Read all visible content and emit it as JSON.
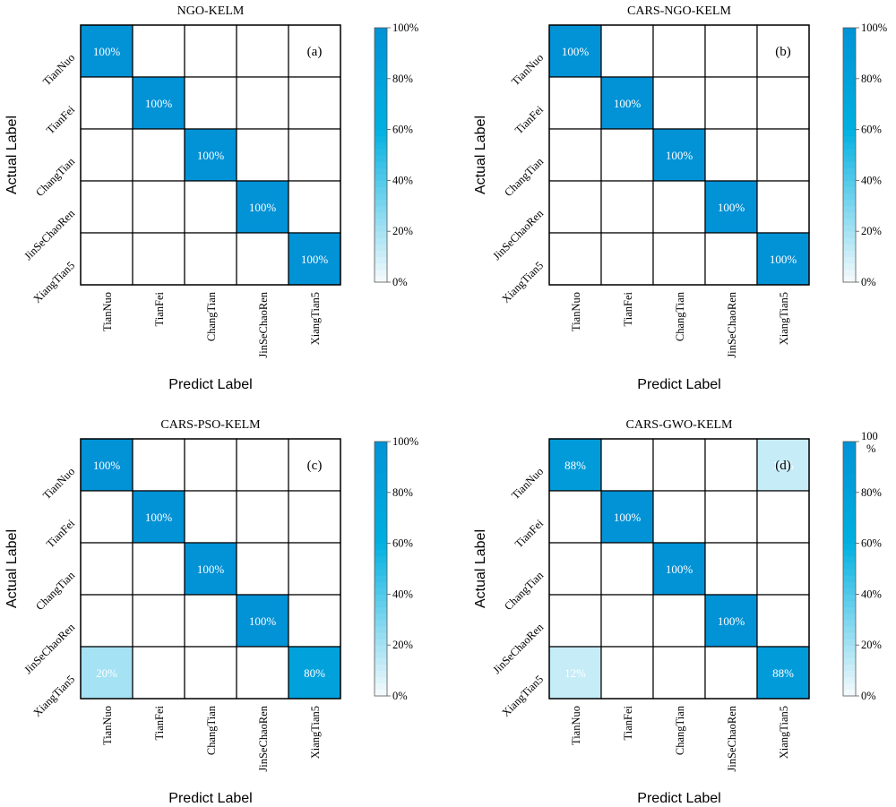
{
  "chart_data": [
    {
      "type": "heatmap",
      "title": "NGO-KELM",
      "panel_label": "(a)",
      "xlabel": "Predict Label",
      "ylabel": "Actual Label",
      "x_categories": [
        "TianNuo",
        "TianFei",
        "ChangTian",
        "JinSeChaoRen",
        "XiangTian5"
      ],
      "y_categories": [
        "TianNuo",
        "TianFei",
        "ChangTian",
        "JinSeChaoRen",
        "XiangTian5"
      ],
      "values": [
        [
          100,
          0,
          0,
          0,
          0
        ],
        [
          0,
          100,
          0,
          0,
          0
        ],
        [
          0,
          0,
          100,
          0,
          0
        ],
        [
          0,
          0,
          0,
          100,
          0
        ],
        [
          0,
          0,
          0,
          0,
          100
        ]
      ],
      "colorbar": {
        "ticks": [
          "0%",
          "20%",
          "40%",
          "60%",
          "80%",
          "100%"
        ],
        "range": [
          0,
          100
        ]
      },
      "grid": true
    },
    {
      "type": "heatmap",
      "title": "CARS-NGO-KELM",
      "panel_label": "(b)",
      "xlabel": "Predict Label",
      "ylabel": "Actual Label",
      "x_categories": [
        "TianNuo",
        "TianFei",
        "ChangTian",
        "JinSeChaoRen",
        "XiangTian5"
      ],
      "y_categories": [
        "TianNuo",
        "TianFei",
        "ChangTian",
        "JinSeChaoRen",
        "XiangTian5"
      ],
      "values": [
        [
          100,
          0,
          0,
          0,
          0
        ],
        [
          0,
          100,
          0,
          0,
          0
        ],
        [
          0,
          0,
          100,
          0,
          0
        ],
        [
          0,
          0,
          0,
          100,
          0
        ],
        [
          0,
          0,
          0,
          0,
          100
        ]
      ],
      "colorbar": {
        "ticks": [
          "0%",
          "20%",
          "40%",
          "60%",
          "80%",
          "100%"
        ],
        "range": [
          0,
          100
        ]
      },
      "grid": true
    },
    {
      "type": "heatmap",
      "title": "CARS-PSO-KELM",
      "panel_label": "(c)",
      "xlabel": "Predict Label",
      "ylabel": "Actual Label",
      "x_categories": [
        "TianNuo",
        "TianFei",
        "ChangTian",
        "JinSeChaoRen",
        "XiangTian5"
      ],
      "y_categories": [
        "TianNuo",
        "TianFei",
        "ChangTian",
        "JinSeChaoRen",
        "XiangTian5"
      ],
      "values": [
        [
          100,
          0,
          0,
          0,
          0
        ],
        [
          0,
          100,
          0,
          0,
          0
        ],
        [
          0,
          0,
          100,
          0,
          0
        ],
        [
          0,
          0,
          0,
          100,
          0
        ],
        [
          20,
          0,
          0,
          0,
          80
        ]
      ],
      "colorbar": {
        "ticks": [
          "0%",
          "20%",
          "40%",
          "60%",
          "80%",
          "100%"
        ],
        "range": [
          0,
          100
        ]
      },
      "grid": true
    },
    {
      "type": "heatmap",
      "title": "CARS-GWO-KELM",
      "panel_label": "(d)",
      "xlabel": "Predict Label",
      "ylabel": "Actual Label",
      "x_categories": [
        "TianNuo",
        "TianFei",
        "ChangTian",
        "JinSeChaoRen",
        "XiangTian5"
      ],
      "y_categories": [
        "TianNuo",
        "TianFei",
        "ChangTian",
        "JinSeChaoRen",
        "XiangTian5"
      ],
      "values": [
        [
          88,
          0,
          0,
          0,
          12
        ],
        [
          0,
          100,
          0,
          0,
          0
        ],
        [
          0,
          0,
          100,
          0,
          0
        ],
        [
          0,
          0,
          0,
          100,
          0
        ],
        [
          12,
          0,
          0,
          0,
          88
        ]
      ],
      "colorbar": {
        "ticks": [
          "0%",
          "20%",
          "40%",
          "60%",
          "80%",
          "100\n%"
        ],
        "range": [
          0,
          100
        ]
      },
      "grid": true
    }
  ],
  "colors": {
    "scale_low": "#f7fbfd",
    "scale_mid": "#00b0e0",
    "scale_high": "#0292d6",
    "cell_text": "#ffffff",
    "grid_line": "#000000"
  }
}
